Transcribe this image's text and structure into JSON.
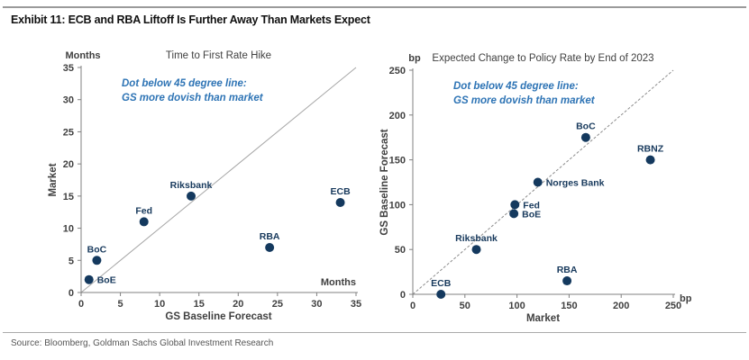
{
  "page": {
    "title": "Exhibit 11: ECB and RBA Liftoff Is Further Away Than Markets Expect",
    "source": "Source: Bloomberg, Goldman Sachs Global Investment Research"
  },
  "theme": {
    "dot_color": "#14395E",
    "point_label_color": "#17395C",
    "annotation_color": "#2E74B5",
    "axis_color": "#808080",
    "tick_text_color": "#404040",
    "title_text_color": "#404040",
    "identity_line_color": "#A6A6A6",
    "identity_line_dashed_color": "#8C8C8C"
  },
  "chart_data": [
    {
      "type": "scatter",
      "title": "Time to First Rate Hike",
      "xlabel": "GS Baseline Forecast",
      "ylabel": "Market",
      "x_unit": "Months",
      "y_unit": "Months",
      "x_unit_pos": "inside",
      "xlim": [
        0,
        35
      ],
      "ylim": [
        0,
        35
      ],
      "xticks": [
        0,
        5,
        10,
        15,
        20,
        25,
        30,
        35
      ],
      "yticks": [
        0,
        5,
        10,
        15,
        20,
        25,
        30,
        35
      ],
      "grid": false,
      "legend": false,
      "identity_line": "solid",
      "annotation": [
        "Dot below 45 degree line:",
        "GS more dovish than market"
      ],
      "points": [
        {
          "label": "BoE",
          "x": 1,
          "y": 2,
          "label_pos": "right"
        },
        {
          "label": "BoC",
          "x": 2,
          "y": 5,
          "label_pos": "above"
        },
        {
          "label": "Fed",
          "x": 8,
          "y": 11,
          "label_pos": "above"
        },
        {
          "label": "Riksbank",
          "x": 14,
          "y": 15,
          "label_pos": "above"
        },
        {
          "label": "RBA",
          "x": 24,
          "y": 7,
          "label_pos": "above"
        },
        {
          "label": "ECB",
          "x": 33,
          "y": 14,
          "label_pos": "above"
        }
      ]
    },
    {
      "type": "scatter",
      "title": "Expected Change to Policy Rate by End of 2023",
      "xlabel": "Market",
      "ylabel": "GS Baseline Forecast",
      "x_unit": "bp",
      "y_unit": "bp",
      "x_unit_pos": "end",
      "xlim": [
        0,
        250
      ],
      "ylim": [
        0,
        250
      ],
      "xticks": [
        0,
        50,
        100,
        150,
        200,
        250
      ],
      "yticks": [
        0,
        50,
        100,
        150,
        200,
        250
      ],
      "grid": false,
      "legend": false,
      "identity_line": "dashed",
      "annotation": [
        "Dot below 45 degree line:",
        "GS more dovish than market"
      ],
      "points": [
        {
          "label": "ECB",
          "x": 27,
          "y": 0,
          "label_pos": "above"
        },
        {
          "label": "Riksbank",
          "x": 61,
          "y": 50,
          "label_pos": "above"
        },
        {
          "label": "BoE",
          "x": 97,
          "y": 90,
          "label_pos": "right"
        },
        {
          "label": "Fed",
          "x": 98,
          "y": 100,
          "label_pos": "right"
        },
        {
          "label": "Norges Bank",
          "x": 120,
          "y": 125,
          "label_pos": "right"
        },
        {
          "label": "RBA",
          "x": 148,
          "y": 15,
          "label_pos": "above"
        },
        {
          "label": "BoC",
          "x": 166,
          "y": 175,
          "label_pos": "above"
        },
        {
          "label": "RBNZ",
          "x": 228,
          "y": 150,
          "label_pos": "above"
        }
      ]
    }
  ]
}
